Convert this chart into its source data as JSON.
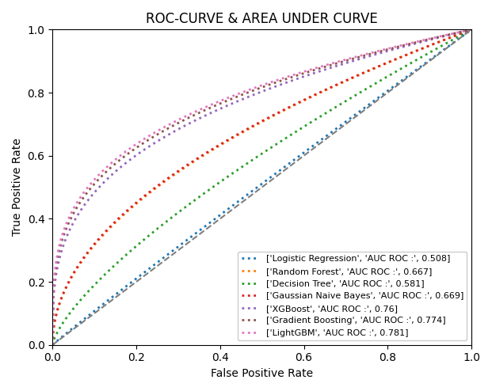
{
  "title": "ROC-CURVE & AREA UNDER CURVE",
  "xlabel": "False Positive Rate",
  "ylabel": "True Positive Rate",
  "classifiers": [
    {
      "name": "['Logistic Regression', 'AUC ROC :', 0.508]",
      "auc": 0.508,
      "color": "#1f77b4"
    },
    {
      "name": "['Random Forest', 'AUC ROC :', 0.667]",
      "auc": 0.667,
      "color": "#ff7f0e"
    },
    {
      "name": "['Decision Tree', 'AUC ROC :', 0.581]",
      "auc": 0.581,
      "color": "#2ca02c"
    },
    {
      "name": "['Gaussian Naive Bayes', 'AUC ROC :', 0.669]",
      "auc": 0.669,
      "color": "#d62728"
    },
    {
      "name": "['XGBoost', 'AUC ROC :', 0.76]",
      "auc": 0.76,
      "color": "#9467bd"
    },
    {
      "name": "['Gradient Boosting', 'AUC ROC :', 0.774]",
      "auc": 0.774,
      "color": "#8c564b"
    },
    {
      "name": "['LightGBM', 'AUC ROC :', 0.781]",
      "auc": 0.781,
      "color": "#e377c2"
    }
  ],
  "diagonal_color": "#7f7f7f",
  "linestyle": "dotted",
  "linewidth": 2.0,
  "legend_fontsize": 8,
  "legend_loc": "lower right",
  "xlim": [
    0.0,
    1.0
  ],
  "ylim": [
    0.0,
    1.0
  ]
}
